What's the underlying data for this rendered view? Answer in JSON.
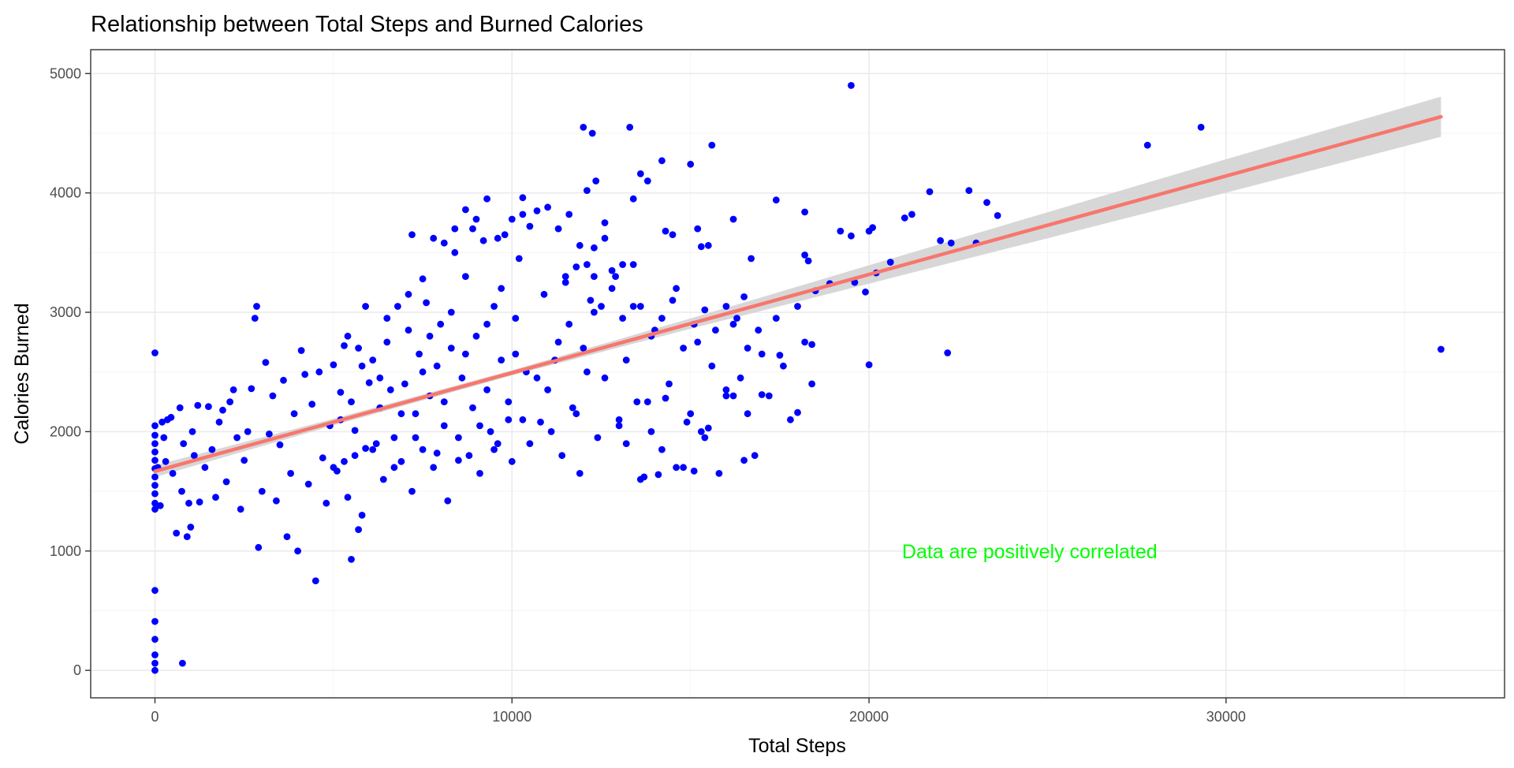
{
  "chart_data": {
    "type": "scatter",
    "title": "Relationship between Total Steps and Burned Calories",
    "xlabel": "Total Steps",
    "ylabel": "Calories Burned",
    "xlim": [
      -1800,
      37800
    ],
    "ylim": [
      -230,
      5200
    ],
    "x_ticks": [
      0,
      10000,
      20000,
      30000
    ],
    "y_ticks": [
      0,
      1000,
      2000,
      3000,
      4000,
      5000
    ],
    "grid": true,
    "point_color": "#0000ff",
    "annotation": {
      "text": "Data are positively correlated",
      "x": 24500,
      "y": 1000,
      "color": "#00ff00"
    },
    "trend_line": {
      "method": "linear",
      "color": "#f8766d",
      "band_color": "#d3d3d3",
      "x": [
        0,
        5000,
        10000,
        15000,
        20000,
        25000,
        30000,
        36019
      ],
      "y": [
        1668,
        2080,
        2493,
        2905,
        3317,
        3729,
        4142,
        4638
      ],
      "band_lower": [
        1619,
        2052,
        2471,
        2862,
        3240,
        3620,
        4002,
        4470
      ],
      "band_upper": [
        1717,
        2108,
        2515,
        2948,
        3394,
        3838,
        4282,
        4806
      ]
    },
    "points": [
      [
        0,
        0
      ],
      [
        0,
        60
      ],
      [
        0,
        130
      ],
      [
        0,
        260
      ],
      [
        0,
        410
      ],
      [
        0,
        670
      ],
      [
        0,
        1350
      ],
      [
        0,
        1400
      ],
      [
        0,
        1480
      ],
      [
        0,
        1550
      ],
      [
        0,
        1620
      ],
      [
        0,
        1690
      ],
      [
        0,
        1760
      ],
      [
        0,
        1830
      ],
      [
        0,
        1900
      ],
      [
        0,
        1970
      ],
      [
        0,
        2050
      ],
      [
        0,
        2660
      ],
      [
        80,
        1700
      ],
      [
        150,
        1380
      ],
      [
        200,
        2080
      ],
      [
        250,
        1950
      ],
      [
        300,
        1750
      ],
      [
        350,
        2100
      ],
      [
        450,
        2120
      ],
      [
        500,
        1650
      ],
      [
        600,
        1150
      ],
      [
        700,
        2200
      ],
      [
        750,
        1500
      ],
      [
        770,
        60
      ],
      [
        800,
        1900
      ],
      [
        900,
        1120
      ],
      [
        950,
        1400
      ],
      [
        1000,
        1200
      ],
      [
        1050,
        2000
      ],
      [
        1100,
        1800
      ],
      [
        1200,
        2220
      ],
      [
        1250,
        1410
      ],
      [
        1400,
        1700
      ],
      [
        1500,
        2210
      ],
      [
        1600,
        1850
      ],
      [
        1700,
        1450
      ],
      [
        1800,
        2080
      ],
      [
        1900,
        2180
      ],
      [
        2000,
        1580
      ],
      [
        2100,
        2250
      ],
      [
        2200,
        2350
      ],
      [
        2300,
        1950
      ],
      [
        2400,
        1350
      ],
      [
        2500,
        1760
      ],
      [
        2600,
        2000
      ],
      [
        2700,
        2360
      ],
      [
        2800,
        2950
      ],
      [
        2850,
        3050
      ],
      [
        2900,
        1030
      ],
      [
        3000,
        1500
      ],
      [
        3100,
        2580
      ],
      [
        3200,
        1980
      ],
      [
        3300,
        2300
      ],
      [
        3400,
        1420
      ],
      [
        3500,
        1890
      ],
      [
        3600,
        2430
      ],
      [
        3700,
        1120
      ],
      [
        3800,
        1650
      ],
      [
        3900,
        2150
      ],
      [
        4000,
        1000
      ],
      [
        4100,
        2680
      ],
      [
        4200,
        2480
      ],
      [
        4300,
        1560
      ],
      [
        4400,
        2230
      ],
      [
        4500,
        750
      ],
      [
        4600,
        2500
      ],
      [
        4700,
        1780
      ],
      [
        4800,
        1400
      ],
      [
        4900,
        2050
      ],
      [
        5000,
        2560
      ],
      [
        5100,
        1670
      ],
      [
        5200,
        2330
      ],
      [
        5300,
        2720
      ],
      [
        5400,
        1450
      ],
      [
        5500,
        930
      ],
      [
        5600,
        2010
      ],
      [
        5700,
        1180
      ],
      [
        5800,
        2550
      ],
      [
        5900,
        1860
      ],
      [
        6000,
        2410
      ],
      [
        5000,
        1700
      ],
      [
        5200,
        2100
      ],
      [
        5400,
        2800
      ],
      [
        5600,
        1800
      ],
      [
        5800,
        1300
      ],
      [
        6100,
        2600
      ],
      [
        6200,
        1900
      ],
      [
        6300,
        2200
      ],
      [
        6400,
        1600
      ],
      [
        6500,
        2750
      ],
      [
        6600,
        2350
      ],
      [
        6700,
        1950
      ],
      [
        6800,
        3050
      ],
      [
        6900,
        1750
      ],
      [
        7000,
        2400
      ],
      [
        7100,
        2850
      ],
      [
        7200,
        1500
      ],
      [
        7300,
        2150
      ],
      [
        7400,
        2650
      ],
      [
        7500,
        1850
      ],
      [
        7600,
        3080
      ],
      [
        7700,
        2300
      ],
      [
        7800,
        1700
      ],
      [
        7900,
        2550
      ],
      [
        8000,
        2900
      ],
      [
        8100,
        2050
      ],
      [
        8200,
        1420
      ],
      [
        8300,
        2700
      ],
      [
        8400,
        3500
      ],
      [
        8500,
        1950
      ],
      [
        8600,
        2450
      ],
      [
        8700,
        3300
      ],
      [
        8800,
        1800
      ],
      [
        8900,
        2200
      ],
      [
        9000,
        2800
      ],
      [
        9100,
        1650
      ],
      [
        9200,
        3600
      ],
      [
        9300,
        2350
      ],
      [
        9400,
        2000
      ],
      [
        9500,
        3050
      ],
      [
        9600,
        1900
      ],
      [
        9700,
        2600
      ],
      [
        9800,
        3650
      ],
      [
        9900,
        2250
      ],
      [
        10000,
        1750
      ],
      [
        10100,
        2950
      ],
      [
        10200,
        3450
      ],
      [
        10300,
        2100
      ],
      [
        10400,
        2500
      ],
      [
        10500,
        3720
      ],
      [
        5300,
        1750
      ],
      [
        5500,
        2250
      ],
      [
        5700,
        2700
      ],
      [
        5900,
        3050
      ],
      [
        6100,
        1850
      ],
      [
        6300,
        2450
      ],
      [
        6500,
        2950
      ],
      [
        6700,
        1700
      ],
      [
        6900,
        2150
      ],
      [
        7100,
        3150
      ],
      [
        7300,
        1950
      ],
      [
        7500,
        2500
      ],
      [
        7700,
        2800
      ],
      [
        7900,
        1820
      ],
      [
        8100,
        2250
      ],
      [
        8300,
        3000
      ],
      [
        8500,
        1760
      ],
      [
        8700,
        2650
      ],
      [
        8900,
        3700
      ],
      [
        9100,
        2050
      ],
      [
        9300,
        2900
      ],
      [
        9500,
        1850
      ],
      [
        9700,
        3200
      ],
      [
        9900,
        2100
      ],
      [
        10100,
        2650
      ],
      [
        10300,
        3820
      ],
      [
        10500,
        1900
      ],
      [
        10700,
        2450
      ],
      [
        10900,
        3150
      ],
      [
        11100,
        2000
      ],
      [
        11300,
        2750
      ],
      [
        11500,
        3300
      ],
      [
        11700,
        2200
      ],
      [
        11900,
        1650
      ],
      [
        12100,
        2500
      ],
      [
        12300,
        3000
      ],
      [
        7200,
        3650
      ],
      [
        7500,
        3280
      ],
      [
        7800,
        3620
      ],
      [
        8100,
        3580
      ],
      [
        8400,
        3700
      ],
      [
        8700,
        3860
      ],
      [
        9000,
        3780
      ],
      [
        9300,
        3950
      ],
      [
        9600,
        3620
      ],
      [
        10000,
        3780
      ],
      [
        10300,
        3960
      ],
      [
        10700,
        3850
      ],
      [
        11000,
        3880
      ],
      [
        11300,
        3700
      ],
      [
        11600,
        3820
      ],
      [
        11900,
        3560
      ],
      [
        12300,
        3540
      ],
      [
        12600,
        3750
      ],
      [
        10800,
        2080
      ],
      [
        11000,
        2350
      ],
      [
        11200,
        2600
      ],
      [
        11400,
        1800
      ],
      [
        11600,
        2900
      ],
      [
        11800,
        2150
      ],
      [
        12000,
        2700
      ],
      [
        12200,
        3100
      ],
      [
        12400,
        1950
      ],
      [
        12600,
        2450
      ],
      [
        12800,
        3350
      ],
      [
        13000,
        2050
      ],
      [
        13200,
        2600
      ],
      [
        13400,
        3050
      ],
      [
        13600,
        1600
      ],
      [
        13800,
        2250
      ],
      [
        14000,
        2850
      ],
      [
        14200,
        1850
      ],
      [
        14400,
        2400
      ],
      [
        14600,
        3200
      ],
      [
        14800,
        1700
      ],
      [
        15000,
        2150
      ],
      [
        15200,
        2750
      ],
      [
        15400,
        1950
      ],
      [
        15600,
        2550
      ],
      [
        15800,
        1650
      ],
      [
        16000,
        2300
      ],
      [
        16200,
        2900
      ],
      [
        16400,
        2450
      ],
      [
        16600,
        2150
      ],
      [
        16800,
        1800
      ],
      [
        17000,
        2650
      ],
      [
        17200,
        2300
      ],
      [
        17400,
        2950
      ],
      [
        17600,
        2550
      ],
      [
        17800,
        2100
      ],
      [
        18000,
        3050
      ],
      [
        18200,
        2750
      ],
      [
        18400,
        2400
      ],
      [
        11500,
        3250
      ],
      [
        11800,
        3380
      ],
      [
        12100,
        3400
      ],
      [
        12300,
        3300
      ],
      [
        12500,
        3050
      ],
      [
        12800,
        3200
      ],
      [
        13100,
        2950
      ],
      [
        13400,
        3400
      ],
      [
        13600,
        3050
      ],
      [
        13900,
        2800
      ],
      [
        14200,
        2950
      ],
      [
        14500,
        3100
      ],
      [
        14800,
        2700
      ],
      [
        15100,
        2900
      ],
      [
        15400,
        3020
      ],
      [
        15700,
        2850
      ],
      [
        16000,
        3050
      ],
      [
        16300,
        2950
      ],
      [
        16600,
        2700
      ],
      [
        16900,
        2850
      ],
      [
        12000,
        4550
      ],
      [
        12250,
        4500
      ],
      [
        12100,
        4020
      ],
      [
        12350,
        4100
      ],
      [
        12600,
        3620
      ],
      [
        12900,
        3300
      ],
      [
        13100,
        3400
      ],
      [
        13300,
        4550
      ],
      [
        13400,
        3950
      ],
      [
        13600,
        4160
      ],
      [
        13800,
        4100
      ],
      [
        14200,
        4270
      ],
      [
        14300,
        3680
      ],
      [
        14500,
        3650
      ],
      [
        15000,
        4240
      ],
      [
        15600,
        4400
      ],
      [
        15200,
        3700
      ],
      [
        15300,
        3550
      ],
      [
        15500,
        3560
      ],
      [
        16200,
        3780
      ],
      [
        16700,
        3450
      ],
      [
        13000,
        2100
      ],
      [
        13200,
        1900
      ],
      [
        13500,
        2250
      ],
      [
        13700,
        1620
      ],
      [
        13900,
        2000
      ],
      [
        14100,
        1640
      ],
      [
        14300,
        2280
      ],
      [
        14600,
        1700
      ],
      [
        14900,
        2080
      ],
      [
        15100,
        1670
      ],
      [
        15300,
        2000
      ],
      [
        15500,
        2030
      ],
      [
        16000,
        2350
      ],
      [
        16200,
        2300
      ],
      [
        16500,
        1760
      ],
      [
        17000,
        2310
      ],
      [
        17500,
        2640
      ],
      [
        18000,
        2160
      ],
      [
        18200,
        3480
      ],
      [
        18300,
        3430
      ],
      [
        18400,
        2730
      ],
      [
        18500,
        3180
      ],
      [
        18900,
        3240
      ],
      [
        19200,
        3680
      ],
      [
        19500,
        3640
      ],
      [
        19600,
        3250
      ],
      [
        20000,
        3680
      ],
      [
        20100,
        3710
      ],
      [
        19900,
        3170
      ],
      [
        20200,
        3330
      ],
      [
        20600,
        3420
      ],
      [
        20000,
        2560
      ],
      [
        21000,
        3790
      ],
      [
        21200,
        3820
      ],
      [
        21700,
        4010
      ],
      [
        22000,
        3600
      ],
      [
        22300,
        3580
      ],
      [
        22200,
        2660
      ],
      [
        22800,
        4020
      ],
      [
        23000,
        3580
      ],
      [
        23300,
        3920
      ],
      [
        23600,
        3810
      ],
      [
        18200,
        3840
      ],
      [
        17400,
        3940
      ],
      [
        16500,
        3130
      ],
      [
        19500,
        4900
      ],
      [
        27800,
        4400
      ],
      [
        29300,
        4550
      ],
      [
        36019,
        2690
      ]
    ]
  }
}
